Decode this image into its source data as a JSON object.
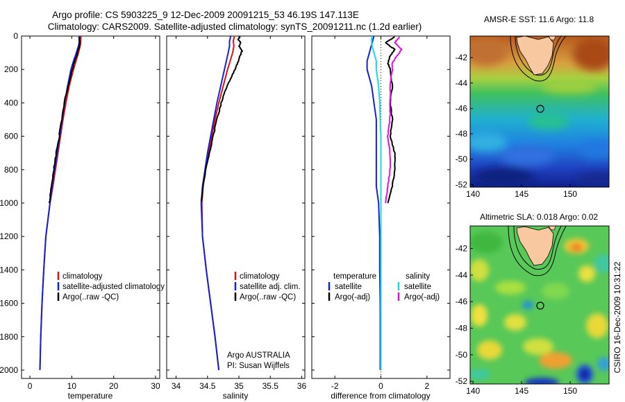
{
  "figure": {
    "title_line1": "Argo profile: CS 5903225_9 12-Dec-2009 20091215_53 46.19S 147.113E",
    "title_line2": "Climatology: CARS2009. Satellite-adjusted climatology: synTS_20091211.nc (1.2d earlier)",
    "credit_line1": "Argo AUSTRALIA",
    "credit_line2": "PI: Susan Wijffels",
    "timestamp": "CSIRO 16-Dec-2009 10:31:22"
  },
  "colors": {
    "climatology": "#e01010",
    "satellite": "#1020e0",
    "argo": "#000000",
    "satellite_salinity": "#10e0e0",
    "argo_adj_salinity": "#e010e0",
    "land": "#f8c8a0"
  },
  "chart_data": [
    {
      "type": "line",
      "panel": "temperature",
      "xlabel": "temperature",
      "ylabel": "",
      "xlim": [
        -2,
        31
      ],
      "ylim": [
        2050,
        0
      ],
      "x_ticks": [
        "0",
        "10",
        "20",
        "30"
      ],
      "x_tick_values": [
        0,
        10,
        20,
        30
      ],
      "y_ticks": [
        "0",
        "200",
        "400",
        "600",
        "800",
        "1000",
        "1200",
        "1400",
        "1600",
        "1800",
        "2000"
      ],
      "y_tick_values": [
        0,
        200,
        400,
        600,
        800,
        1000,
        1200,
        1400,
        1600,
        1800,
        2000
      ],
      "legend": [
        "climatology",
        "satellite-adjusted climatology",
        "Argo(..raw -QC)"
      ],
      "series": [
        {
          "name": "climatology",
          "color": "#e01010",
          "depth": [
            0,
            50,
            100,
            150,
            200,
            300,
            400,
            500,
            600,
            700,
            800,
            900,
            1000,
            1200,
            1400,
            1600,
            1800,
            2000
          ],
          "values": [
            12.2,
            12.1,
            11.6,
            11.0,
            10.4,
            9.4,
            8.6,
            7.9,
            7.3,
            6.7,
            6.1,
            5.5,
            4.8,
            3.8,
            3.3,
            2.9,
            2.6,
            2.4
          ]
        },
        {
          "name": "satellite-adjusted climatology",
          "color": "#1020e0",
          "depth": [
            0,
            50,
            100,
            150,
            200,
            300,
            400,
            500,
            600,
            700,
            800,
            900,
            1000,
            1200,
            1400,
            1600,
            1800,
            2000
          ],
          "values": [
            11.9,
            11.7,
            11.1,
            10.4,
            9.8,
            9.0,
            8.3,
            7.7,
            7.1,
            6.5,
            5.9,
            5.3,
            4.8,
            3.8,
            3.3,
            2.9,
            2.6,
            2.4
          ]
        },
        {
          "name": "Argo(..raw -QC)",
          "color": "#000000",
          "depth": [
            5,
            30,
            60,
            100,
            150,
            200,
            300,
            400,
            500,
            600,
            700,
            800,
            900,
            1000
          ],
          "values": [
            11.7,
            11.9,
            11.8,
            11.4,
            10.7,
            10.1,
            9.1,
            8.2,
            7.6,
            7.0,
            6.3,
            5.7,
            5.2,
            4.6
          ]
        }
      ]
    },
    {
      "type": "line",
      "panel": "salinity",
      "xlabel": "salinity",
      "ylabel": "",
      "xlim": [
        33.85,
        36.05
      ],
      "ylim": [
        2050,
        0
      ],
      "x_ticks": [
        "34",
        "34.5",
        "35",
        "35.5",
        "36"
      ],
      "x_tick_values": [
        34,
        34.5,
        35,
        35.5,
        36
      ],
      "legend": [
        "climatology",
        "satellite adj. clim.",
        "Argo(..raw -QC)"
      ],
      "series": [
        {
          "name": "climatology",
          "color": "#e01010",
          "depth": [
            0,
            30,
            60,
            100,
            150,
            200,
            300,
            400,
            500,
            600,
            700,
            800,
            900,
            1000,
            1200,
            1400,
            1600,
            1800,
            2000
          ],
          "values": [
            34.93,
            34.91,
            34.92,
            34.9,
            34.86,
            34.82,
            34.75,
            34.68,
            34.62,
            34.57,
            34.52,
            34.47,
            34.43,
            34.41,
            34.42,
            34.48,
            34.55,
            34.62,
            34.68
          ]
        },
        {
          "name": "satellite adj. clim.",
          "color": "#1020e0",
          "depth": [
            0,
            30,
            60,
            100,
            150,
            200,
            300,
            400,
            500,
            600,
            700,
            800,
            900,
            1000,
            1200,
            1400,
            1600,
            1800,
            2000
          ],
          "values": [
            34.87,
            34.85,
            34.85,
            34.83,
            34.8,
            34.77,
            34.71,
            34.65,
            34.6,
            34.55,
            34.5,
            34.46,
            34.42,
            34.4,
            34.42,
            34.48,
            34.55,
            34.62,
            34.68
          ]
        },
        {
          "name": "Argo(..raw -QC)",
          "color": "#000000",
          "depth": [
            5,
            20,
            40,
            60,
            90,
            120,
            160,
            200,
            260,
            320,
            400,
            500,
            600,
            700,
            800,
            900,
            990
          ],
          "values": [
            35.02,
            34.99,
            35.03,
            35.0,
            35.05,
            35.02,
            34.98,
            34.94,
            34.86,
            34.79,
            34.72,
            34.65,
            34.59,
            34.53,
            34.47,
            34.43,
            34.4
          ]
        }
      ]
    },
    {
      "type": "line",
      "panel": "difference",
      "xlabel": "difference from climatology",
      "ylabel": "",
      "xlim": [
        -3,
        3
      ],
      "ylim": [
        2050,
        0
      ],
      "x_ticks": [
        "-2",
        "0",
        "2"
      ],
      "x_tick_values": [
        -2,
        0,
        2
      ],
      "legend_temperature": {
        "heading": "temperature",
        "items": [
          "satellite",
          "Argo(-adj)"
        ]
      },
      "legend_salinity": {
        "heading": "salinity",
        "items": [
          "satellite",
          "Argo(-adj)"
        ]
      },
      "series": [
        {
          "name": "temperature satellite",
          "color": "#1020e0",
          "depth": [
            0,
            50,
            100,
            150,
            200,
            300,
            400,
            500,
            600,
            700,
            800,
            900,
            1000,
            1200,
            1400,
            1600,
            1800,
            2000
          ],
          "values": [
            -0.3,
            -0.4,
            -0.5,
            -0.6,
            -0.6,
            -0.4,
            -0.3,
            -0.2,
            -0.2,
            -0.2,
            -0.2,
            -0.2,
            -0.1,
            -0.05,
            -0.05,
            -0.03,
            -0.03,
            -0.03
          ]
        },
        {
          "name": "temperature Argo(-adj)",
          "color": "#000000",
          "depth": [
            5,
            40,
            80,
            120,
            160,
            200,
            300,
            400,
            500,
            600,
            700,
            800,
            900,
            1000
          ],
          "values": [
            0.6,
            0.2,
            0.6,
            0.4,
            0.3,
            0.4,
            0.5,
            0.4,
            0.5,
            0.4,
            0.6,
            0.6,
            0.5,
            0.3
          ]
        },
        {
          "name": "salinity satellite",
          "color": "#10e0e0",
          "depth": [
            0,
            50,
            100,
            150,
            200,
            300,
            400,
            500,
            600,
            700,
            800,
            900,
            1000,
            1200,
            1400,
            1600,
            1800,
            2000
          ],
          "values": [
            -0.4,
            -0.4,
            -0.3,
            -0.2,
            -0.2,
            -0.1,
            -0.05,
            -0.03,
            0,
            0,
            0,
            0,
            0,
            0,
            0,
            0,
            0,
            0
          ]
        },
        {
          "name": "salinity Argo(-adj)",
          "color": "#e010e0",
          "depth": [
            5,
            40,
            80,
            120,
            160,
            200,
            300,
            400,
            500,
            600,
            700,
            800,
            900,
            1000
          ],
          "values": [
            0.8,
            0.6,
            0.9,
            0.7,
            0.5,
            0.5,
            0.4,
            0.4,
            0.4,
            0.3,
            0.4,
            0.4,
            0.3,
            0.2
          ]
        }
      ]
    }
  ],
  "maps": [
    {
      "title": "AMSR-E SST: 11.6  Argo: 11.8",
      "lon_ticks": [
        "140",
        "145",
        "150"
      ],
      "lon_tick_values": [
        140,
        145,
        150
      ],
      "lat_ticks": [
        "-42",
        "-44",
        "-46",
        "-48",
        "-50",
        "-52"
      ],
      "lat_tick_values": [
        -42,
        -44,
        -46,
        -48,
        -50,
        -52
      ],
      "lon_range": [
        139.7,
        154.0
      ],
      "lat_range": [
        -52.2,
        -40.3
      ],
      "float_lon": 147.113,
      "float_lat": -46.19
    },
    {
      "title": "Altimetric SLA: 0.018  Argo: 0.02",
      "lon_ticks": [
        "140",
        "145",
        "150"
      ],
      "lon_tick_values": [
        140,
        145,
        150
      ],
      "lat_ticks": [
        "-42",
        "-44",
        "-46",
        "-48",
        "-50",
        "-52"
      ],
      "lat_tick_values": [
        -42,
        -44,
        -46,
        -48,
        -50,
        -52
      ],
      "lon_range": [
        139.7,
        154.0
      ],
      "lat_range": [
        -52.2,
        -40.3
      ],
      "float_lon": 147.113,
      "float_lat": -46.19
    }
  ]
}
